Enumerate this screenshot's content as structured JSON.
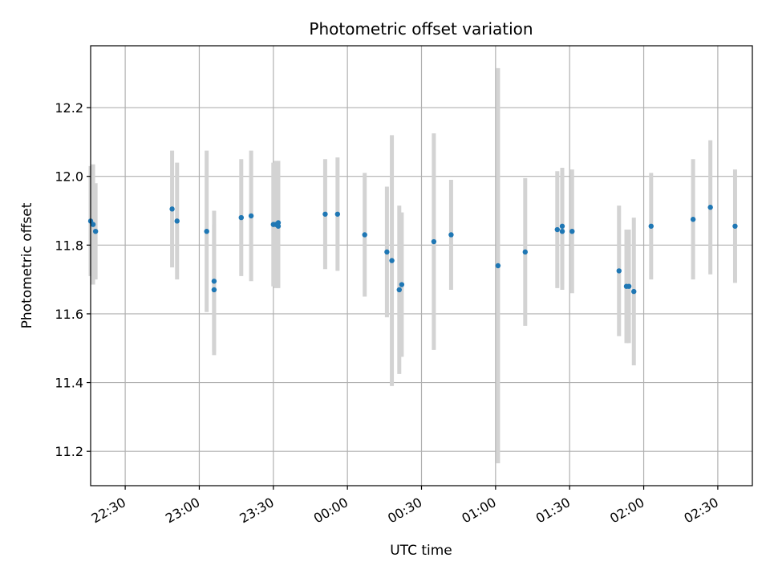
{
  "chart_data": {
    "type": "scatter",
    "title": "Photometric offset variation",
    "xlabel": "UTC time",
    "ylabel": "Photometric offset",
    "grid": true,
    "x_ticks": [
      "22:30",
      "23:00",
      "23:30",
      "00:00",
      "00:30",
      "01:00",
      "01:30",
      "02:00",
      "02:30"
    ],
    "y_ticks": [
      "11.2",
      "11.4",
      "11.6",
      "11.8",
      "12.0",
      "12.2"
    ],
    "xlim": [
      "22:16",
      "02:44"
    ],
    "ylim": [
      11.1,
      12.38
    ],
    "point_color": "#1f77b4",
    "errorbar_color": "#d3d3d3",
    "points": [
      {
        "x": "22:16",
        "y": 11.87,
        "err": 0.16
      },
      {
        "x": "22:17",
        "y": 11.86,
        "err": 0.175
      },
      {
        "x": "22:18",
        "y": 11.84,
        "err": 0.14
      },
      {
        "x": "22:49",
        "y": 11.905,
        "err": 0.17
      },
      {
        "x": "22:51",
        "y": 11.87,
        "err": 0.17
      },
      {
        "x": "23:03",
        "y": 11.84,
        "err": 0.235
      },
      {
        "x": "23:06",
        "y": 11.695,
        "err": 0.205
      },
      {
        "x": "23:06",
        "y": 11.67,
        "err": 0.19
      },
      {
        "x": "23:17",
        "y": 11.88,
        "err": 0.17
      },
      {
        "x": "23:21",
        "y": 11.885,
        "err": 0.19
      },
      {
        "x": "23:30",
        "y": 11.86,
        "err": 0.18
      },
      {
        "x": "23:31",
        "y": 11.86,
        "err": 0.185
      },
      {
        "x": "23:32",
        "y": 11.865,
        "err": 0.18
      },
      {
        "x": "23:32",
        "y": 11.855,
        "err": 0.18
      },
      {
        "x": "23:51",
        "y": 11.89,
        "err": 0.16
      },
      {
        "x": "23:56",
        "y": 11.89,
        "err": 0.165
      },
      {
        "x": "00:07",
        "y": 11.83,
        "err": 0.18
      },
      {
        "x": "00:16",
        "y": 11.78,
        "err": 0.19
      },
      {
        "x": "00:18",
        "y": 11.755,
        "err": 0.365
      },
      {
        "x": "00:21",
        "y": 11.67,
        "err": 0.245
      },
      {
        "x": "00:22",
        "y": 11.685,
        "err": 0.21
      },
      {
        "x": "00:35",
        "y": 11.81,
        "err": 0.315
      },
      {
        "x": "00:42",
        "y": 11.83,
        "err": 0.16
      },
      {
        "x": "01:01",
        "y": 11.74,
        "err": 0.575
      },
      {
        "x": "01:12",
        "y": 11.78,
        "err": 0.215
      },
      {
        "x": "01:25",
        "y": 11.845,
        "err": 0.17
      },
      {
        "x": "01:27",
        "y": 11.855,
        "err": 0.17
      },
      {
        "x": "01:27",
        "y": 11.84,
        "err": 0.17
      },
      {
        "x": "01:31",
        "y": 11.84,
        "err": 0.18
      },
      {
        "x": "01:50",
        "y": 11.725,
        "err": 0.19
      },
      {
        "x": "01:53",
        "y": 11.68,
        "err": 0.165
      },
      {
        "x": "01:54",
        "y": 11.68,
        "err": 0.165
      },
      {
        "x": "01:56",
        "y": 11.665,
        "err": 0.215
      },
      {
        "x": "02:03",
        "y": 11.855,
        "err": 0.155
      },
      {
        "x": "02:20",
        "y": 11.875,
        "err": 0.175
      },
      {
        "x": "02:27",
        "y": 11.91,
        "err": 0.195
      },
      {
        "x": "02:37",
        "y": 11.855,
        "err": 0.165
      }
    ]
  }
}
